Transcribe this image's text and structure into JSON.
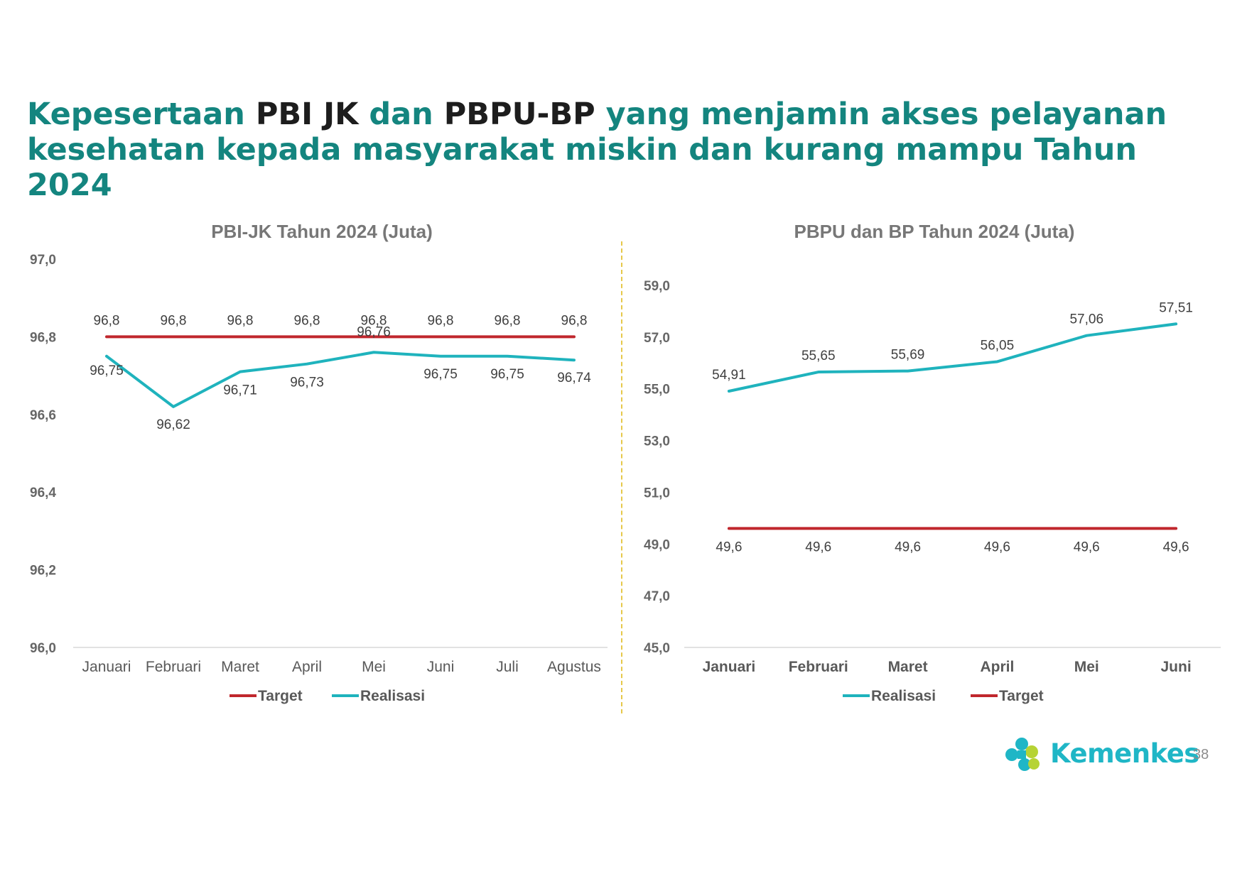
{
  "title": {
    "p1": "Kepesertaan ",
    "p2": "PBI JK",
    "p3": " dan ",
    "p4": "PBPU-BP",
    "p5": " yang menjamin akses pelayanan kesehatan kepada masyarakat miskin dan kurang mampu Tahun 2024"
  },
  "colors": {
    "target": "#c0272d",
    "realisasi": "#1fb3bd",
    "title": "#14857f"
  },
  "chart_data": [
    {
      "type": "line",
      "title": "PBI-JK Tahun 2024 (Juta)",
      "categories": [
        "Januari",
        "Februari",
        "Maret",
        "April",
        "Mei",
        "Juni",
        "Juli",
        "Agustus"
      ],
      "ylim": [
        96.0,
        97.0
      ],
      "yticks": [
        "96,0",
        "96,2",
        "96,4",
        "96,6",
        "96,8",
        "97,0"
      ],
      "series": [
        {
          "name": "Target",
          "values": [
            96.8,
            96.8,
            96.8,
            96.8,
            96.8,
            96.8,
            96.8,
            96.8
          ],
          "labels": [
            "96,8",
            "96,8",
            "96,8",
            "96,8",
            "96,8",
            "96,8",
            "96,8",
            "96,8"
          ]
        },
        {
          "name": "Realisasi",
          "values": [
            96.75,
            96.62,
            96.71,
            96.73,
            96.76,
            96.75,
            96.75,
            96.74
          ],
          "labels": [
            "96,75",
            "96,62",
            "96,71",
            "96,73",
            "96,76",
            "96,75",
            "96,75",
            "96,74"
          ]
        }
      ],
      "legend": [
        "Target",
        "Realisasi"
      ],
      "legend_position": "bottom"
    },
    {
      "type": "line",
      "title": "PBPU dan BP Tahun 2024 (Juta)",
      "categories": [
        "Januari",
        "Februari",
        "Maret",
        "April",
        "Mei",
        "Juni"
      ],
      "ylim": [
        45.0,
        59.0
      ],
      "yticks": [
        "45,0",
        "47,0",
        "49,0",
        "51,0",
        "53,0",
        "55,0",
        "57,0",
        "59,0"
      ],
      "series": [
        {
          "name": "Realisasi",
          "values": [
            54.91,
            55.65,
            55.69,
            56.05,
            57.06,
            57.51
          ],
          "labels": [
            "54,91",
            "55,65",
            "55,69",
            "56,05",
            "57,06",
            "57,51"
          ]
        },
        {
          "name": "Target",
          "values": [
            49.6,
            49.6,
            49.6,
            49.6,
            49.6,
            49.6
          ],
          "labels": [
            "49,6",
            "49,6",
            "49,6",
            "49,6",
            "49,6",
            "49,6"
          ]
        }
      ],
      "legend": [
        "Realisasi",
        "Target"
      ],
      "legend_position": "bottom"
    }
  ],
  "footer": {
    "logo_text": "Kemenkes",
    "page_number": "38",
    "logo_icon": "kemenkes-logo-icon"
  }
}
